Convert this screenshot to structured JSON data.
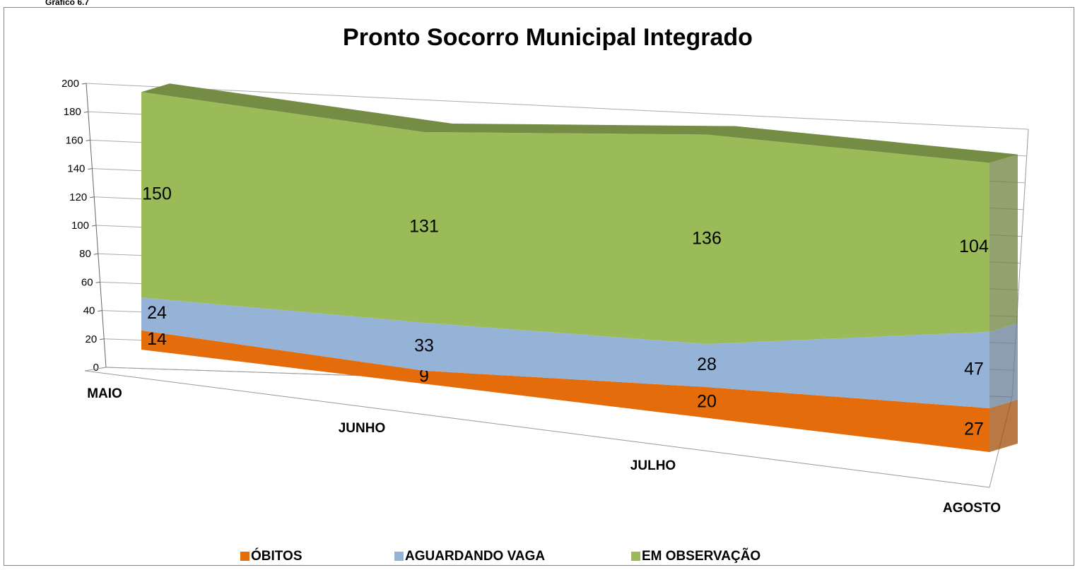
{
  "header": {
    "caption": "Gráfico 6.7"
  },
  "chart_data": {
    "type": "area",
    "stacked": true,
    "three_d": true,
    "title": "Pronto Socorro Municipal Integrado",
    "categories": [
      "MAIO",
      "JUNHO",
      "JULHO",
      "AGOSTO"
    ],
    "series": [
      {
        "name": "ÓBITOS",
        "color": "#e46c0a",
        "values": [
          14,
          9,
          20,
          27
        ]
      },
      {
        "name": "AGUARDANDO VAGA",
        "color": "#95b3d7",
        "values": [
          24,
          33,
          28,
          47
        ]
      },
      {
        "name": "EM OBSERVAÇÃO",
        "color": "#9bbb59",
        "values": [
          150,
          131,
          136,
          104
        ]
      }
    ],
    "ylim": [
      0,
      200
    ],
    "yticks": [
      0,
      20,
      40,
      60,
      80,
      100,
      120,
      140,
      160,
      180,
      200
    ],
    "grid": true,
    "legend": "bottom"
  }
}
